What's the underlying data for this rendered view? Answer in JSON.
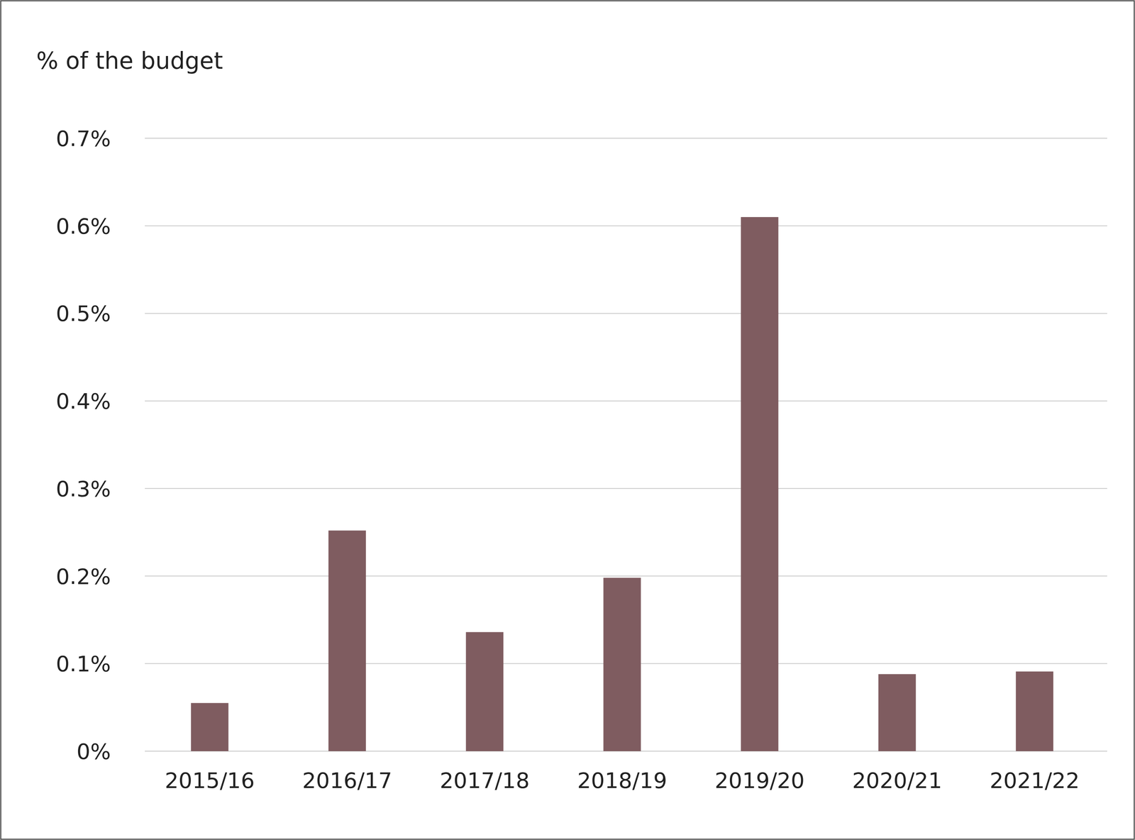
{
  "chart_data": {
    "type": "bar",
    "y_label": "% of the budget",
    "categories": [
      "2015/16",
      "2016/17",
      "2017/18",
      "2018/19",
      "2019/20",
      "2020/21",
      "2021/22"
    ],
    "values": [
      0.055,
      0.252,
      0.136,
      0.198,
      0.61,
      0.088,
      0.091
    ],
    "color": "#7f5c60",
    "ylim": [
      0,
      0.7
    ],
    "yticks": [
      {
        "value": 0,
        "label": "0%"
      },
      {
        "value": 0.1,
        "label": "0.1%"
      },
      {
        "value": 0.2,
        "label": "0.2%"
      },
      {
        "value": 0.3,
        "label": "0.3%"
      },
      {
        "value": 0.4,
        "label": "0.4%"
      },
      {
        "value": 0.5,
        "label": "0.5%"
      },
      {
        "value": 0.6,
        "label": "0.6%"
      },
      {
        "value": 0.7,
        "label": "0.7%"
      }
    ],
    "grid": true
  }
}
